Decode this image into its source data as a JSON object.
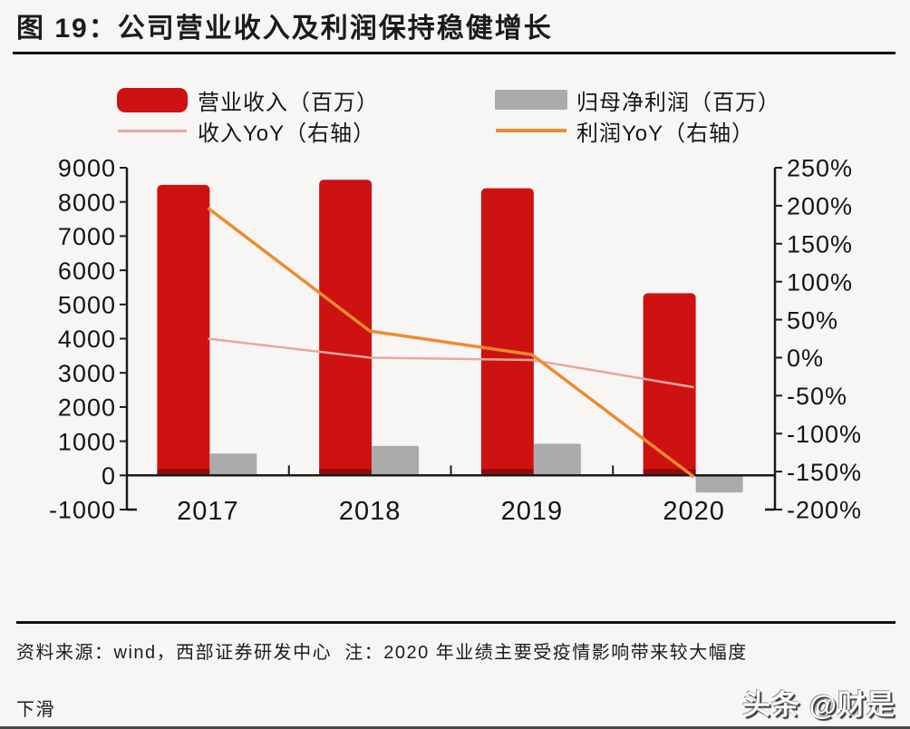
{
  "title": "图 19：公司营业收入及利润保持稳健增长",
  "chart_data": {
    "type": "combo bar+line, dual axis",
    "categories": [
      "2017",
      "2018",
      "2019",
      "2020"
    ],
    "series": [
      {
        "name": "营业收入（百万）",
        "render": "bar",
        "axis": "left",
        "color": "#CE1212",
        "values": [
          8500,
          8650,
          8400,
          5330
        ]
      },
      {
        "name": "归母净利润（百万）",
        "render": "bar",
        "axis": "left",
        "color": "#ABABAB",
        "values": [
          640,
          865,
          925,
          -500
        ]
      },
      {
        "name": "收入YoY（右轴）",
        "render": "line",
        "axis": "right",
        "color": "#E9A69D",
        "values_pct": [
          25,
          0,
          -3,
          -39
        ]
      },
      {
        "name": "利润YoY（右轴）",
        "render": "line",
        "axis": "right",
        "color": "#EE8B2C",
        "values_pct": [
          197,
          35,
          4,
          -157
        ]
      }
    ],
    "left_axis": {
      "min": -1000,
      "max": 9000,
      "step": 1000,
      "ticks": [
        "9000",
        "8000",
        "7000",
        "6000",
        "5000",
        "4000",
        "3000",
        "2000",
        "1000",
        "0",
        "-1000"
      ]
    },
    "right_axis": {
      "min": -200,
      "max": 250,
      "step": 50,
      "ticks": [
        "250%",
        "200%",
        "150%",
        "100%",
        "50%",
        "0%",
        "-50%",
        "-100%",
        "-150%",
        "-200%"
      ]
    },
    "grid": false,
    "legend_position": "top"
  },
  "footer": {
    "line1": "资料来源：wind，西部证券研发中心  注：2020 年业绩主要受疫情影响带来较大幅度",
    "line2": "下滑"
  },
  "watermark": "头条 @财是",
  "colors": {
    "background": "#F8F6F5",
    "bar_red": "#CE1212",
    "bar_red_base": "#8F0B0B",
    "bar_gray": "#ABABAB",
    "line_pink": "#E9A69D",
    "line_orange": "#EE8B2C",
    "axis": "#1A1A1A",
    "text": "#141414"
  }
}
